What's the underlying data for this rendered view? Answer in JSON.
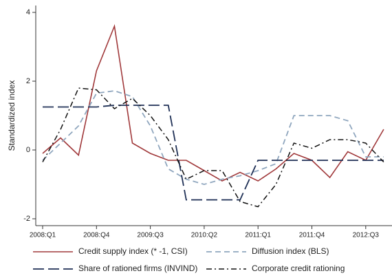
{
  "chart_data": {
    "type": "line",
    "ylabel": "Standardized index",
    "categories": [
      "2008:Q1",
      null,
      null,
      "2008:Q4",
      null,
      null,
      "2009:Q3",
      null,
      null,
      "2010:Q2",
      null,
      null,
      "2011:Q1",
      null,
      null,
      "2011:Q4",
      null,
      null,
      "2012:Q3",
      null
    ],
    "series": [
      {
        "name": "Credit supply index (* -1, CSI)",
        "color": "#a0383a",
        "values": [
          -0.1,
          0.35,
          -0.15,
          2.3,
          3.6,
          0.2,
          -0.1,
          -0.3,
          -0.3,
          -0.6,
          -0.9,
          -0.65,
          -0.9,
          -0.55,
          -0.1,
          -0.3,
          -0.8,
          -0.05,
          -0.3,
          0.6
        ]
      },
      {
        "name": "Diffusion index (BLS)",
        "color": "#8fa6be",
        "values": [
          -0.3,
          0.2,
          0.7,
          1.65,
          1.72,
          1.55,
          0.7,
          -0.55,
          -0.85,
          -1.0,
          -0.85,
          -0.75,
          -0.6,
          -0.4,
          1.0,
          1.0,
          1.0,
          0.85,
          -0.2,
          -0.2
        ]
      },
      {
        "name": "Share of rationed firms (INVIND)",
        "color": "#1e2f55",
        "values": [
          1.25,
          1.25,
          1.25,
          1.25,
          1.3,
          1.3,
          1.3,
          1.3,
          -1.45,
          -1.45,
          -1.45,
          -1.45,
          -0.3,
          -0.3,
          -0.3,
          -0.3,
          -0.3,
          -0.3,
          -0.3,
          -0.3
        ]
      },
      {
        "name": "Corporate credit rationing",
        "color": "#111111",
        "values": [
          -0.35,
          0.6,
          1.8,
          1.75,
          1.2,
          1.5,
          1.0,
          0.3,
          -0.85,
          -0.6,
          -0.6,
          -1.5,
          -1.65,
          -1.0,
          0.2,
          0.05,
          0.3,
          0.3,
          0.2,
          -0.35
        ]
      }
    ],
    "ylim": [
      -2.2,
      4.2
    ],
    "yticks": [
      -2,
      0,
      2,
      4
    ]
  }
}
